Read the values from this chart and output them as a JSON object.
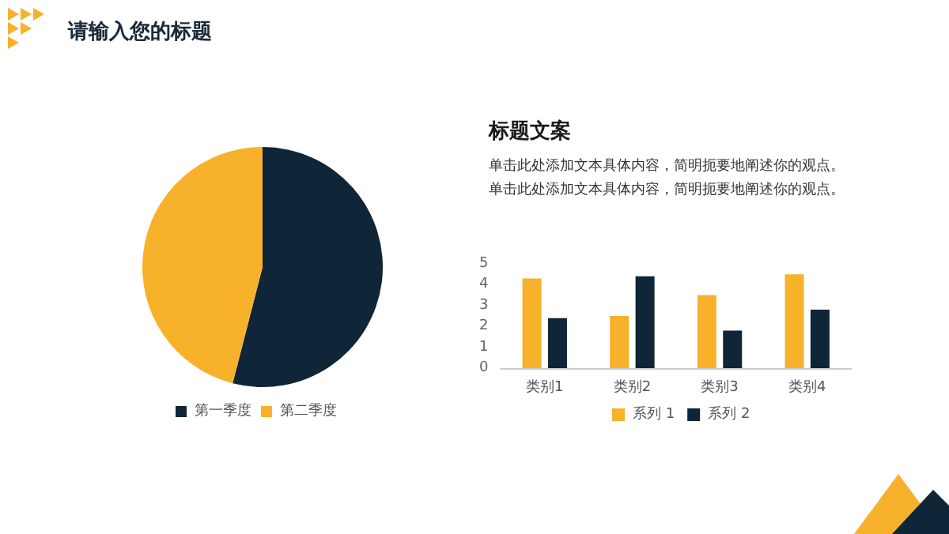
{
  "chart_data": [
    {
      "type": "pie",
      "title": "请输入您的标题",
      "categories": [
        "第一季度",
        "第二季度"
      ],
      "values": [
        54,
        46
      ],
      "colors": [
        "#0f2538",
        "#f8b12b"
      ],
      "legend": "bottom"
    },
    {
      "type": "bar",
      "title": "标题文案",
      "subtitle": "单击此处添加文本具体内容，简明扼要地阐述你的观点。单击此处添加文本具体内容，简明扼要地阐述你的观点。",
      "categories": [
        "类别1",
        "类别2",
        "类别3",
        "类别4"
      ],
      "series": [
        {
          "name": "系列 1",
          "color": "#f8b12b",
          "values": [
            4.3,
            2.5,
            3.5,
            4.5
          ]
        },
        {
          "name": "系列 2",
          "color": "#0f2538",
          "values": [
            2.4,
            4.4,
            1.8,
            2.8
          ]
        }
      ],
      "ylim": [
        0,
        5
      ],
      "yticks": [
        0,
        1,
        2,
        3,
        4,
        5
      ],
      "grid": false,
      "legend": "bottom"
    }
  ]
}
